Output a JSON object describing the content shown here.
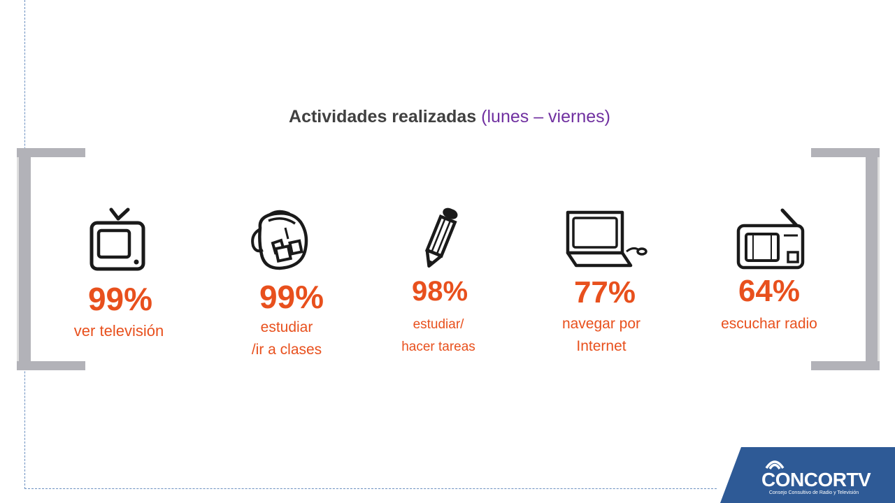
{
  "title": {
    "bold_part": "Actividades realizadas",
    "paren_part": "(lunes – viernes)"
  },
  "colors": {
    "accent": "#e8501d",
    "title_text": "#404040",
    "title_paren": "#7030a0",
    "bracket": "#b2b2b8",
    "logo_bg": "#2e5a96"
  },
  "chart_data": {
    "type": "bar",
    "title": "Actividades realizadas (lunes – viernes)",
    "categories": [
      "ver televisión",
      "estudiar /ir a clases",
      "estudiar/ hacer tareas",
      "navegar por Internet",
      "escuchar radio"
    ],
    "values": [
      99,
      99,
      98,
      77,
      64
    ],
    "unit": "%"
  },
  "items": [
    {
      "icon": "tv-icon",
      "value_label": "99%",
      "label_lines": [
        "ver televisión"
      ]
    },
    {
      "icon": "backpack-icon",
      "value_label": "99%",
      "label_lines": [
        "estudiar",
        "/ir a clases"
      ]
    },
    {
      "icon": "pencil-icon",
      "value_label": "98%",
      "label_lines": [
        "estudiar/",
        "hacer tareas"
      ]
    },
    {
      "icon": "laptop-icon",
      "value_label": "77%",
      "label_lines": [
        "navegar por",
        "Internet"
      ]
    },
    {
      "icon": "radio-icon",
      "value_label": "64%",
      "label_lines": [
        "escuchar radio"
      ]
    }
  ],
  "logo": {
    "name": "CONCORTV",
    "subtitle": "Consejo Consultivo de Radio y Televisión"
  }
}
